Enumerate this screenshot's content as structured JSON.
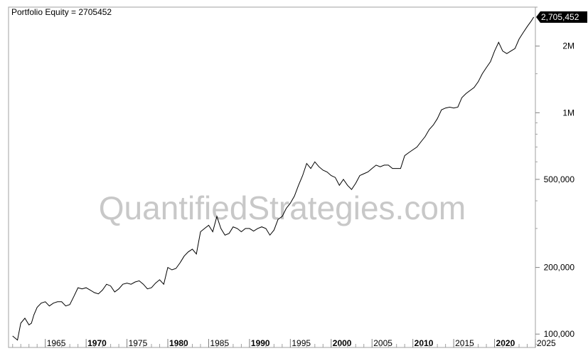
{
  "legend": {
    "label": "Portfolio Equity = 2705452"
  },
  "watermark": "QuantifiedStrategies.com",
  "last_value_badge": "2,705,452",
  "chart_data": {
    "type": "line",
    "title": "",
    "xlabel": "",
    "ylabel": "",
    "y_scale": "log",
    "xlim": [
      1960.5,
      2025.0
    ],
    "ylim": [
      87000,
      3000000
    ],
    "grid": false,
    "legend_position": "top-left",
    "line_color": "#000000",
    "x_ticks": [
      {
        "value": 1965,
        "label": "1965",
        "bold": false
      },
      {
        "value": 1970,
        "label": "1970",
        "bold": true
      },
      {
        "value": 1975,
        "label": "1975",
        "bold": false
      },
      {
        "value": 1980,
        "label": "1980",
        "bold": true
      },
      {
        "value": 1985,
        "label": "1985",
        "bold": false
      },
      {
        "value": 1990,
        "label": "1990",
        "bold": true
      },
      {
        "value": 1995,
        "label": "1995",
        "bold": false
      },
      {
        "value": 2000,
        "label": "2000",
        "bold": true
      },
      {
        "value": 2005,
        "label": "2005",
        "bold": false
      },
      {
        "value": 2010,
        "label": "2010",
        "bold": true
      },
      {
        "value": 2015,
        "label": "2015",
        "bold": false
      },
      {
        "value": 2020,
        "label": "2020",
        "bold": true
      },
      {
        "value": 2025,
        "label": "2025",
        "bold": false
      }
    ],
    "y_ticks": [
      {
        "value": 100000,
        "label": "100,000"
      },
      {
        "value": 200000,
        "label": "200,000"
      },
      {
        "value": 500000,
        "label": "500,000"
      },
      {
        "value": 1000000,
        "label": "1M"
      },
      {
        "value": 2000000,
        "label": "2M"
      }
    ],
    "series": [
      {
        "name": "Portfolio Equity",
        "x": [
          1961.0,
          1961.6,
          1962.0,
          1962.5,
          1963.0,
          1963.3,
          1963.6,
          1964.0,
          1964.5,
          1965.0,
          1965.5,
          1966.0,
          1966.5,
          1967.0,
          1967.5,
          1968.0,
          1968.5,
          1969.0,
          1969.5,
          1970.0,
          1970.5,
          1971.0,
          1971.5,
          1972.0,
          1972.5,
          1973.0,
          1973.5,
          1974.0,
          1974.5,
          1975.0,
          1975.5,
          1976.0,
          1976.5,
          1977.0,
          1977.5,
          1978.0,
          1978.5,
          1979.0,
          1979.5,
          1980.0,
          1980.5,
          1981.0,
          1981.5,
          1982.0,
          1982.5,
          1983.0,
          1983.5,
          1984.0,
          1984.5,
          1985.0,
          1985.5,
          1986.0,
          1986.5,
          1987.0,
          1987.5,
          1988.0,
          1988.5,
          1989.0,
          1989.5,
          1990.0,
          1990.5,
          1991.0,
          1991.5,
          1992.0,
          1992.5,
          1993.0,
          1993.5,
          1994.0,
          1994.5,
          1995.0,
          1995.5,
          1996.0,
          1996.5,
          1997.0,
          1997.5,
          1998.0,
          1998.5,
          1999.0,
          1999.5,
          2000.0,
          2000.5,
          2001.0,
          2001.5,
          2002.0,
          2002.5,
          2003.0,
          2003.5,
          2004.0,
          2004.5,
          2005.0,
          2005.5,
          2006.0,
          2006.5,
          2007.0,
          2007.5,
          2008.0,
          2008.5,
          2009.0,
          2009.5,
          2010.0,
          2010.5,
          2011.0,
          2011.5,
          2012.0,
          2012.5,
          2013.0,
          2013.5,
          2014.0,
          2014.5,
          2015.0,
          2015.5,
          2016.0,
          2016.5,
          2017.0,
          2017.5,
          2018.0,
          2018.5,
          2019.0,
          2019.5,
          2020.0,
          2020.5,
          2021.0,
          2021.5,
          2022.0,
          2022.5,
          2023.0,
          2023.5,
          2024.0,
          2024.5,
          2024.8
        ],
        "values": [
          98000,
          94000,
          112000,
          118000,
          110000,
          112000,
          122000,
          132000,
          138000,
          140000,
          134000,
          138000,
          140000,
          140000,
          134000,
          136000,
          148000,
          162000,
          160000,
          162000,
          158000,
          154000,
          152000,
          158000,
          168000,
          165000,
          155000,
          160000,
          168000,
          170000,
          168000,
          172000,
          174000,
          168000,
          160000,
          162000,
          170000,
          176000,
          168000,
          200000,
          195000,
          198000,
          210000,
          225000,
          235000,
          242000,
          230000,
          290000,
          300000,
          310000,
          290000,
          340000,
          300000,
          280000,
          285000,
          305000,
          300000,
          290000,
          300000,
          300000,
          292000,
          300000,
          305000,
          300000,
          280000,
          295000,
          330000,
          340000,
          370000,
          390000,
          420000,
          470000,
          520000,
          590000,
          560000,
          600000,
          570000,
          550000,
          540000,
          520000,
          510000,
          470000,
          500000,
          470000,
          450000,
          480000,
          520000,
          530000,
          540000,
          560000,
          580000,
          570000,
          580000,
          580000,
          560000,
          560000,
          560000,
          640000,
          660000,
          680000,
          700000,
          740000,
          780000,
          840000,
          880000,
          940000,
          1030000,
          1050000,
          1060000,
          1050000,
          1060000,
          1170000,
          1220000,
          1260000,
          1300000,
          1380000,
          1500000,
          1600000,
          1700000,
          1900000,
          2080000,
          1900000,
          1850000,
          1900000,
          1950000,
          2150000,
          2300000,
          2450000,
          2600000,
          2705452
        ]
      }
    ]
  }
}
